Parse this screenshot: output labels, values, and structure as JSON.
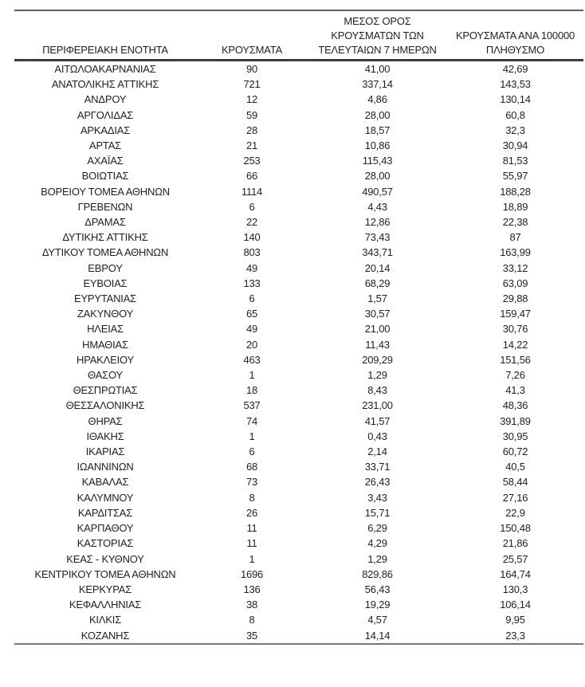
{
  "colors": {
    "background": "#ffffff",
    "text": "#1f1f1f",
    "rule_top": "#5f5f5f",
    "rule_header": "#3d3d3d",
    "rule_bottom": "#757575"
  },
  "table": {
    "columns": [
      {
        "id": "region",
        "lines": [
          "ΠΕΡΙΦΕΡΕΙΑΚΗ ΕΝΟΤΗΤΑ"
        ]
      },
      {
        "id": "cases",
        "lines": [
          "ΚΡΟΥΣΜΑΤΑ"
        ]
      },
      {
        "id": "avg7",
        "lines": [
          "ΜΕΣΟΣ ΟΡΟΣ",
          "ΚΡΟΥΣΜΑΤΩΝ ΤΩΝ",
          "ΤΕΛΕΥΤΑΙΩΝ 7 ΗΜΕΡΩΝ"
        ]
      },
      {
        "id": "per100k",
        "lines": [
          "ΚΡΟΥΣΜΑΤΑ ΑΝΑ 100000",
          "ΠΛΗΘΥΣΜΟ"
        ]
      }
    ],
    "rows": [
      [
        "ΑΙΤΩΛΟΑΚΑΡΝΑΝΙΑΣ",
        "90",
        "41,00",
        "42,69"
      ],
      [
        "ΑΝΑΤΟΛΙΚΗΣ ΑΤΤΙΚΗΣ",
        "721",
        "337,14",
        "143,53"
      ],
      [
        "ΑΝΔΡΟΥ",
        "12",
        "4,86",
        "130,14"
      ],
      [
        "ΑΡΓΟΛΙΔΑΣ",
        "59",
        "28,00",
        "60,8"
      ],
      [
        "ΑΡΚΑΔΙΑΣ",
        "28",
        "18,57",
        "32,3"
      ],
      [
        "ΑΡΤΑΣ",
        "21",
        "10,86",
        "30,94"
      ],
      [
        "ΑΧΑΪΑΣ",
        "253",
        "115,43",
        "81,53"
      ],
      [
        "ΒΟΙΩΤΙΑΣ",
        "66",
        "28,00",
        "55,97"
      ],
      [
        "ΒΟΡΕΙΟΥ ΤΟΜΕΑ ΑΘΗΝΩΝ",
        "1114",
        "490,57",
        "188,28"
      ],
      [
        "ΓΡΕΒΕΝΩΝ",
        "6",
        "4,43",
        "18,89"
      ],
      [
        "ΔΡΑΜΑΣ",
        "22",
        "12,86",
        "22,38"
      ],
      [
        "ΔΥΤΙΚΗΣ ΑΤΤΙΚΗΣ",
        "140",
        "73,43",
        "87"
      ],
      [
        "ΔΥΤΙΚΟΥ ΤΟΜΕΑ ΑΘΗΝΩΝ",
        "803",
        "343,71",
        "163,99"
      ],
      [
        "ΕΒΡΟΥ",
        "49",
        "20,14",
        "33,12"
      ],
      [
        "ΕΥΒΟΙΑΣ",
        "133",
        "68,29",
        "63,09"
      ],
      [
        "ΕΥΡΥΤΑΝΙΑΣ",
        "6",
        "1,57",
        "29,88"
      ],
      [
        "ΖΑΚΥΝΘΟΥ",
        "65",
        "30,57",
        "159,47"
      ],
      [
        "ΗΛΕΙΑΣ",
        "49",
        "21,00",
        "30,76"
      ],
      [
        "ΗΜΑΘΙΑΣ",
        "20",
        "11,43",
        "14,22"
      ],
      [
        "ΗΡΑΚΛΕΙΟΥ",
        "463",
        "209,29",
        "151,56"
      ],
      [
        "ΘΑΣΟΥ",
        "1",
        "1,29",
        "7,26"
      ],
      [
        "ΘΕΣΠΡΩΤΙΑΣ",
        "18",
        "8,43",
        "41,3"
      ],
      [
        "ΘΕΣΣΑΛΟΝΙΚΗΣ",
        "537",
        "231,00",
        "48,36"
      ],
      [
        "ΘΗΡΑΣ",
        "74",
        "41,57",
        "391,89"
      ],
      [
        "ΙΘΑΚΗΣ",
        "1",
        "0,43",
        "30,95"
      ],
      [
        "ΙΚΑΡΙΑΣ",
        "6",
        "2,14",
        "60,72"
      ],
      [
        "ΙΩΑΝΝΙΝΩΝ",
        "68",
        "33,71",
        "40,5"
      ],
      [
        "ΚΑΒΑΛΑΣ",
        "73",
        "26,43",
        "58,44"
      ],
      [
        "ΚΑΛΥΜΝΟΥ",
        "8",
        "3,43",
        "27,16"
      ],
      [
        "ΚΑΡΔΙΤΣΑΣ",
        "26",
        "15,71",
        "22,9"
      ],
      [
        "ΚΑΡΠΑΘΟΥ",
        "11",
        "6,29",
        "150,48"
      ],
      [
        "ΚΑΣΤΟΡΙΑΣ",
        "11",
        "4,29",
        "21,86"
      ],
      [
        "ΚΕΑΣ - ΚΥΘΝΟΥ",
        "1",
        "1,29",
        "25,57"
      ],
      [
        "ΚΕΝΤΡΙΚΟΥ ΤΟΜΕΑ ΑΘΗΝΩΝ",
        "1696",
        "829,86",
        "164,74"
      ],
      [
        "ΚΕΡΚΥΡΑΣ",
        "136",
        "56,43",
        "130,3"
      ],
      [
        "ΚΕΦΑΛΛΗΝΙΑΣ",
        "38",
        "19,29",
        "106,14"
      ],
      [
        "ΚΙΛΚΙΣ",
        "8",
        "4,57",
        "9,95"
      ],
      [
        "ΚΟΖΑΝΗΣ",
        "35",
        "14,14",
        "23,3"
      ]
    ]
  }
}
